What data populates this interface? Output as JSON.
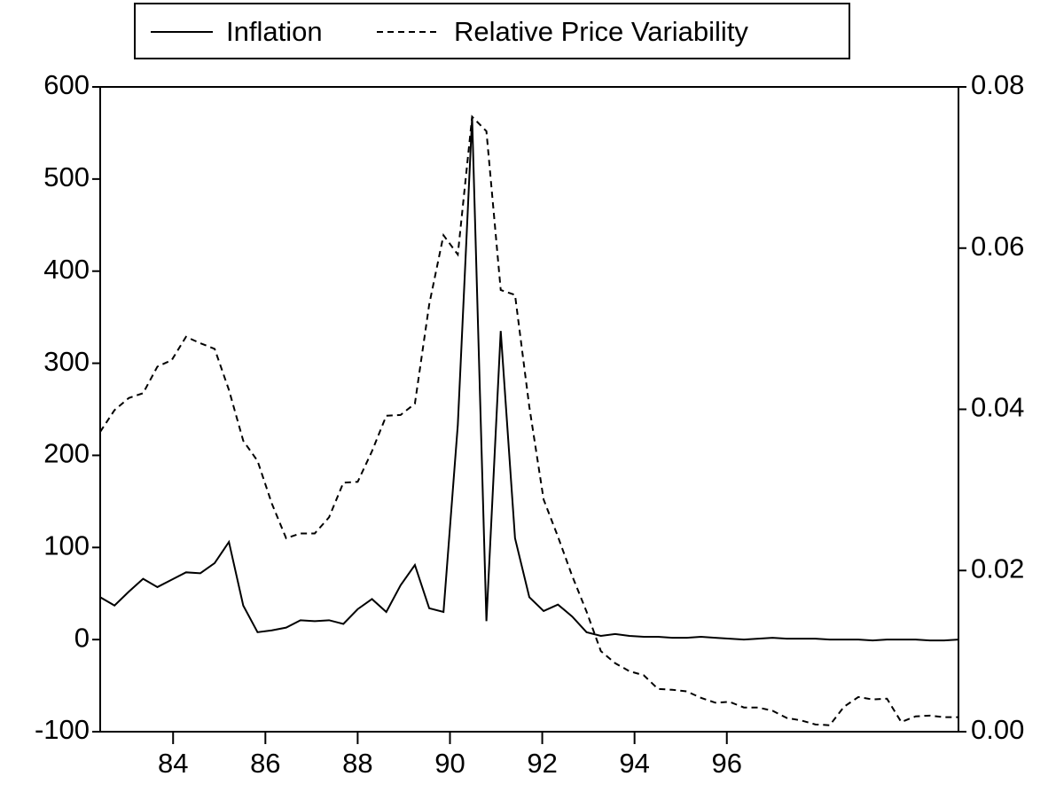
{
  "chart_data": {
    "type": "line",
    "x": [
      82.42,
      82.73,
      83.04,
      83.35,
      83.66,
      83.97,
      84.28,
      84.59,
      84.9,
      85.21,
      85.52,
      85.83,
      86.14,
      86.45,
      86.76,
      87.07,
      87.38,
      87.69,
      88.0,
      88.31,
      88.62,
      88.93,
      89.24,
      89.55,
      89.86,
      90.17,
      90.48,
      90.79,
      91.1,
      91.41,
      91.72,
      92.03,
      92.34,
      92.65,
      92.96,
      93.27,
      93.58,
      93.89,
      94.2,
      94.51,
      94.82,
      95.13,
      95.44,
      95.75,
      96.06,
      96.37,
      96.68,
      96.99,
      97.3,
      97.61,
      97.92,
      98.23,
      98.54,
      98.85,
      99.16,
      99.47,
      99.78,
      100.09,
      100.4,
      100.71,
      101.02
    ],
    "series": [
      {
        "name": "Inflation",
        "color": "#000000",
        "dash": false,
        "axis": "y",
        "values": [
          46,
          37,
          52,
          66,
          57,
          65,
          73,
          72,
          83,
          106,
          37,
          8,
          10,
          13,
          21,
          20,
          21,
          17,
          33,
          44,
          30,
          59,
          81,
          34,
          30,
          233,
          567,
          20,
          335,
          110,
          46,
          31,
          38,
          25,
          8,
          4,
          6,
          4,
          3,
          3,
          2,
          2,
          3,
          2,
          1,
          0,
          1,
          2,
          1,
          1,
          1,
          0,
          0,
          0,
          -1,
          0,
          0,
          0,
          -1,
          -1,
          0
        ]
      },
      {
        "name": "Relative Price Variability",
        "color": "#000000",
        "dash": true,
        "axis": "y2",
        "values": [
          0.0372,
          0.0399,
          0.0414,
          0.042,
          0.0453,
          0.0461,
          0.049,
          0.0482,
          0.0475,
          0.0424,
          0.0361,
          0.0336,
          0.0283,
          0.024,
          0.0246,
          0.0246,
          0.0266,
          0.0309,
          0.031,
          0.0348,
          0.0392,
          0.0393,
          0.0407,
          0.053,
          0.0616,
          0.0592,
          0.0763,
          0.0745,
          0.0548,
          0.0542,
          0.0403,
          0.0288,
          0.0242,
          0.0193,
          0.0149,
          0.01,
          0.0085,
          0.0075,
          0.007,
          0.0053,
          0.0052,
          0.005,
          0.0042,
          0.0036,
          0.0037,
          0.003,
          0.003,
          0.0026,
          0.0017,
          0.0014,
          0.0009,
          0.0008,
          0.0031,
          0.0043,
          0.004,
          0.0041,
          0.0012,
          0.0019,
          0.002,
          0.0018,
          0.0018
        ]
      }
    ],
    "xlim": [
      82.42,
      101.02
    ],
    "xticks": [
      84,
      86,
      88,
      90,
      92,
      94,
      96
    ],
    "ylim": [
      -100,
      600
    ],
    "yticks": [
      -100,
      0,
      100,
      200,
      300,
      400,
      500,
      600
    ],
    "y2lim": [
      0,
      0.08
    ],
    "y2ticks": [
      {
        "value": 0,
        "label": "0.00"
      },
      {
        "value": 0.02,
        "label": "0.02"
      },
      {
        "value": 0.04,
        "label": "0.04"
      },
      {
        "value": 0.06,
        "label": "0.06"
      },
      {
        "value": 0.08,
        "label": "0.08"
      }
    ],
    "legend": "top"
  }
}
